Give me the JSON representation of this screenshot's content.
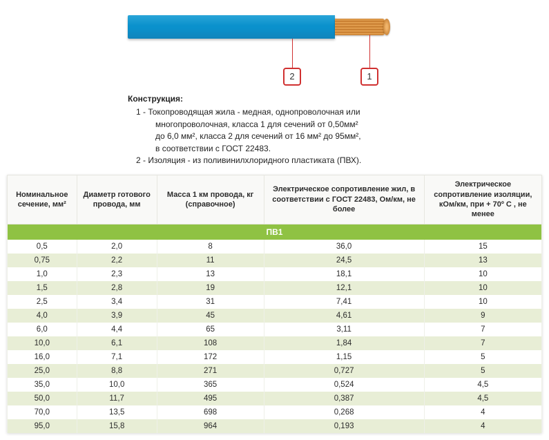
{
  "diagram": {
    "callout1": "1",
    "callout2": "2"
  },
  "legend": {
    "title": "Конструкция:",
    "item1_l1": "1 - Токопроводящая жила - медная, однопроволочная или",
    "item1_l2": "многопроволочная, класса 1 для сечений от 0,50мм²",
    "item1_l3": "до 6,0 мм², класса 2  для сечений от 16 мм² до 95мм²,",
    "item1_l4": "в соответствии с ГОСТ 22483.",
    "item2": "2 - Изоляция - из поливинилхлоридного пластиката (ПВХ)."
  },
  "table": {
    "columns": [
      "Номинальное сечение, мм²",
      "Диаметр готового провода, мм",
      "Масса 1 км провода, кг (справочное)",
      "Электрическое сопротивление жил, в соответствии с ГОСТ 22483, Ом/км, не более",
      "Электрическое сопротивление изоляции,  кОм/км, при + 70º С , не менее"
    ],
    "col_widths": [
      "13%",
      "15%",
      "20%",
      "30%",
      "22%"
    ],
    "section_label": "ПВ1",
    "rows": [
      [
        "0,5",
        "2,0",
        "8",
        "36,0",
        "15"
      ],
      [
        "0,75",
        "2,2",
        "11",
        "24,5",
        "13"
      ],
      [
        "1,0",
        "2,3",
        "13",
        "18,1",
        "10"
      ],
      [
        "1,5",
        "2,8",
        "19",
        "12,1",
        "10"
      ],
      [
        "2,5",
        "3,4",
        "31",
        "7,41",
        "10"
      ],
      [
        "4,0",
        "3,9",
        "45",
        "4,61",
        "9"
      ],
      [
        "6,0",
        "4,4",
        "65",
        "3,11",
        "7"
      ],
      [
        "10,0",
        "6,1",
        "108",
        "1,84",
        "7"
      ],
      [
        "16,0",
        "7,1",
        "172",
        "1,15",
        "5"
      ],
      [
        "25,0",
        "8,8",
        "271",
        "0,727",
        "5"
      ],
      [
        "35,0",
        "10,0",
        "365",
        "0,524",
        "4,5"
      ],
      [
        "50,0",
        "11,7",
        "495",
        "0,387",
        "4,5"
      ],
      [
        "70,0",
        "13,5",
        "698",
        "0,268",
        "4"
      ],
      [
        "95,0",
        "15,8",
        "964",
        "0,193",
        "4"
      ]
    ],
    "header_bg": "#f9f9f7",
    "section_bg": "#8fc243",
    "row_odd_bg": "#ffffff",
    "row_even_bg": "#e8eed6"
  }
}
